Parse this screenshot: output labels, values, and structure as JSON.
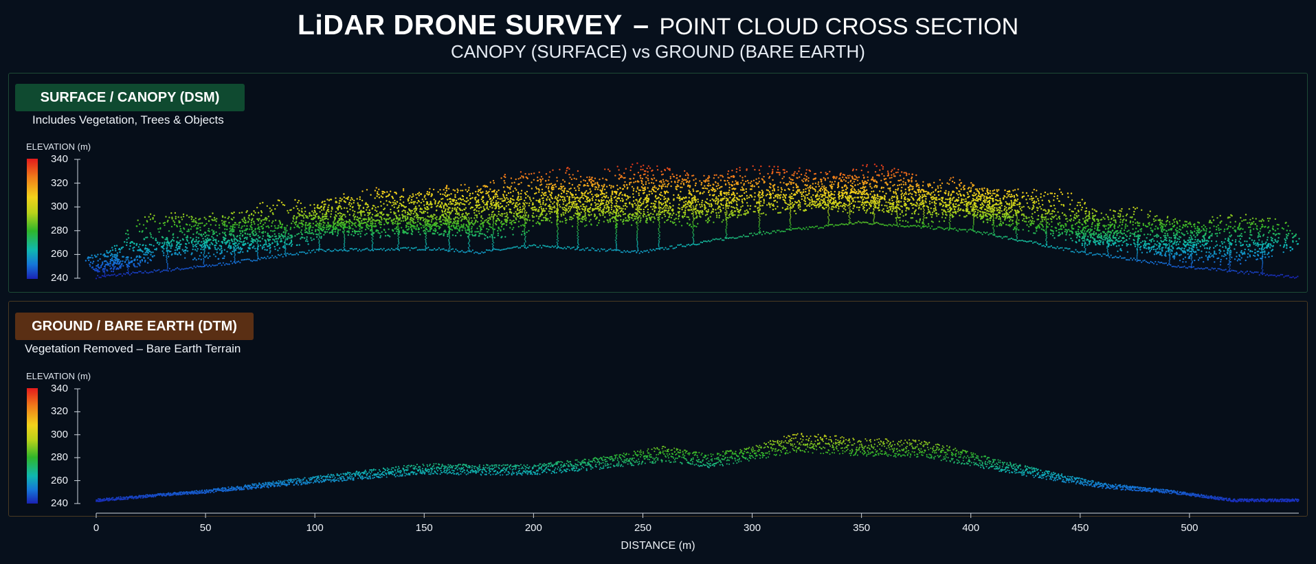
{
  "header": {
    "title_main": "LiDAR DRONE SURVEY",
    "title_sep": "–",
    "title_rest": "POINT CLOUD CROSS SECTION",
    "subtitle": "CANOPY (SURFACE) vs GROUND (BARE EARTH)"
  },
  "panels": {
    "surface": {
      "badge": "SURFACE / CANOPY (DSM)",
      "description": "Includes Vegetation, Trees & Objects",
      "scale_label": "ELEVATION (m)"
    },
    "ground": {
      "badge": "GROUND / BARE EARTH (DTM)",
      "description": "Vegetation Removed – Bare Earth Terrain",
      "scale_label": "ELEVATION (m)"
    }
  },
  "colors": {
    "background": "#07101c",
    "surface_badge": "#0f4a30",
    "ground_badge": "#5a2f14",
    "colormap": [
      "#1a22b4",
      "#1576d8",
      "#0fb8b0",
      "#2fb52a",
      "#b9d21a",
      "#f2d21b",
      "#f07a1a",
      "#e31a1c"
    ]
  },
  "chart_data": [
    {
      "type": "scatter",
      "name": "surface",
      "title": "SURFACE / CANOPY (DSM)",
      "ylabel": "ELEVATION (m)",
      "ylim": [
        240,
        340
      ],
      "yticks": [
        240,
        260,
        280,
        300,
        320,
        340
      ],
      "xlim": [
        0,
        550
      ],
      "ground_profile": {
        "x": [
          0,
          50,
          100,
          150,
          175,
          200,
          250,
          300,
          350,
          400,
          450,
          500,
          550
        ],
        "y": [
          241,
          250,
          263,
          265,
          262,
          267,
          262,
          277,
          287,
          280,
          262,
          249,
          241
        ]
      },
      "canopy_profile": {
        "x": [
          0,
          25,
          50,
          75,
          100,
          125,
          150,
          175,
          200,
          225,
          250,
          275,
          300,
          325,
          350,
          375,
          400,
          425,
          450,
          475,
          500,
          525,
          550
        ],
        "y": [
          250,
          290,
          295,
          298,
          303,
          310,
          312,
          316,
          324,
          333,
          335,
          334,
          334,
          336,
          332,
          325,
          321,
          318,
          305,
          298,
          287,
          293,
          288
        ]
      }
    },
    {
      "type": "scatter",
      "name": "ground",
      "title": "GROUND / BARE EARTH (DTM)",
      "ylabel": "ELEVATION (m)",
      "xlabel": "DISTANCE (m)",
      "ylim": [
        240,
        340
      ],
      "yticks": [
        240,
        260,
        280,
        300,
        320,
        340
      ],
      "xlim": [
        0,
        550
      ],
      "xticks": [
        0,
        50,
        100,
        150,
        200,
        250,
        300,
        350,
        400,
        450,
        500
      ],
      "profile": {
        "x": [
          0,
          50,
          100,
          150,
          175,
          200,
          230,
          260,
          280,
          300,
          320,
          350,
          380,
          420,
          460,
          490,
          520,
          550
        ],
        "y": [
          244,
          252,
          264,
          275,
          274,
          274,
          281,
          290,
          283,
          290,
          302,
          297,
          295,
          275,
          258,
          252,
          244,
          244
        ]
      }
    }
  ]
}
